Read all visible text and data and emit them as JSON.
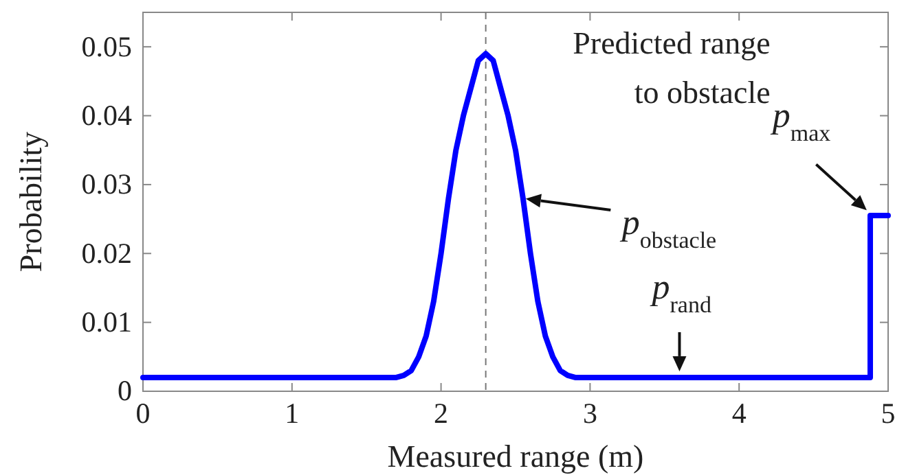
{
  "chart_data": {
    "type": "line",
    "xlabel": "Measured range (m)",
    "ylabel": "Probability",
    "x": [
      0,
      1.7,
      1.75,
      1.8,
      1.85,
      1.9,
      1.95,
      2.0,
      2.05,
      2.1,
      2.15,
      2.2,
      2.25,
      2.3,
      2.35,
      2.4,
      2.45,
      2.5,
      2.55,
      2.6,
      2.65,
      2.7,
      2.75,
      2.8,
      2.85,
      2.9,
      4.88,
      4.88,
      5
    ],
    "series": [
      {
        "color": "#0000ff",
        "values": [
          0.002,
          0.002,
          0.0023,
          0.003,
          0.005,
          0.008,
          0.013,
          0.02,
          0.028,
          0.035,
          0.04,
          0.044,
          0.048,
          0.049,
          0.048,
          0.044,
          0.04,
          0.035,
          0.028,
          0.02,
          0.013,
          0.008,
          0.005,
          0.003,
          0.0023,
          0.002,
          0.002,
          0.0255,
          0.0255
        ]
      }
    ],
    "xlim": [
      0,
      5
    ],
    "xticks": [
      0,
      1,
      2,
      3,
      4,
      5
    ],
    "ylim": [
      0,
      0.055
    ],
    "yticks": [
      0,
      0.01,
      0.02,
      0.03,
      0.04,
      0.05
    ],
    "grid": false,
    "marker": "none",
    "line_style": "solid",
    "ref_lines": [
      {
        "axis": "x",
        "value": 2.3,
        "label": "Predicted range\nto obstacle",
        "color": "#777777",
        "line_style": "dashed"
      }
    ],
    "annotations": [
      {
        "text": "p$_{obstacle}$",
        "x": 2.55,
        "y": 0.028
      },
      {
        "text": "p$_{rand}$",
        "x": 3.6,
        "y": 0.0025
      },
      {
        "text": "p$_{max}$",
        "x": 4.87,
        "y": 0.026
      }
    ]
  }
}
